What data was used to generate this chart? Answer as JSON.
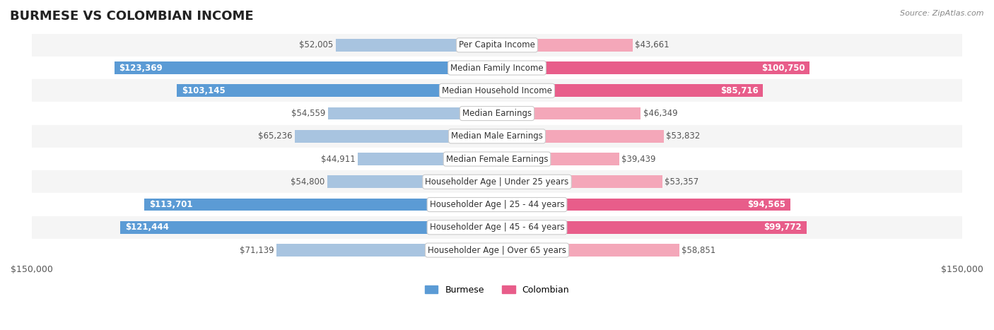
{
  "title": "BURMESE VS COLOMBIAN INCOME",
  "source": "Source: ZipAtlas.com",
  "categories": [
    "Per Capita Income",
    "Median Family Income",
    "Median Household Income",
    "Median Earnings",
    "Median Male Earnings",
    "Median Female Earnings",
    "Householder Age | Under 25 years",
    "Householder Age | 25 - 44 years",
    "Householder Age | 45 - 64 years",
    "Householder Age | Over 65 years"
  ],
  "burmese_values": [
    52005,
    123369,
    103145,
    54559,
    65236,
    44911,
    54800,
    113701,
    121444,
    71139
  ],
  "colombian_values": [
    43661,
    100750,
    85716,
    46349,
    53832,
    39439,
    53357,
    94565,
    99772,
    58851
  ],
  "burmese_labels": [
    "$52,005",
    "$123,369",
    "$103,145",
    "$54,559",
    "$65,236",
    "$44,911",
    "$54,800",
    "$113,701",
    "$121,444",
    "$71,139"
  ],
  "colombian_labels": [
    "$43,661",
    "$100,750",
    "$85,716",
    "$46,349",
    "$53,832",
    "$39,439",
    "$53,357",
    "$94,565",
    "$99,772",
    "$58,851"
  ],
  "burmese_color_light": "#a8c4e0",
  "burmese_color_dark": "#5b9bd5",
  "colombian_color_light": "#f4a7b9",
  "colombian_color_dark": "#e85d8a",
  "max_value": 150000,
  "legend_burmese": "Burmese",
  "legend_colombian": "Colombian",
  "bg_color": "#ffffff",
  "row_bg_light": "#f5f5f5",
  "row_bg_white": "#ffffff",
  "bar_height": 0.55,
  "title_fontsize": 13,
  "label_fontsize": 8.5,
  "category_fontsize": 8.5,
  "axis_label_fontsize": 9
}
